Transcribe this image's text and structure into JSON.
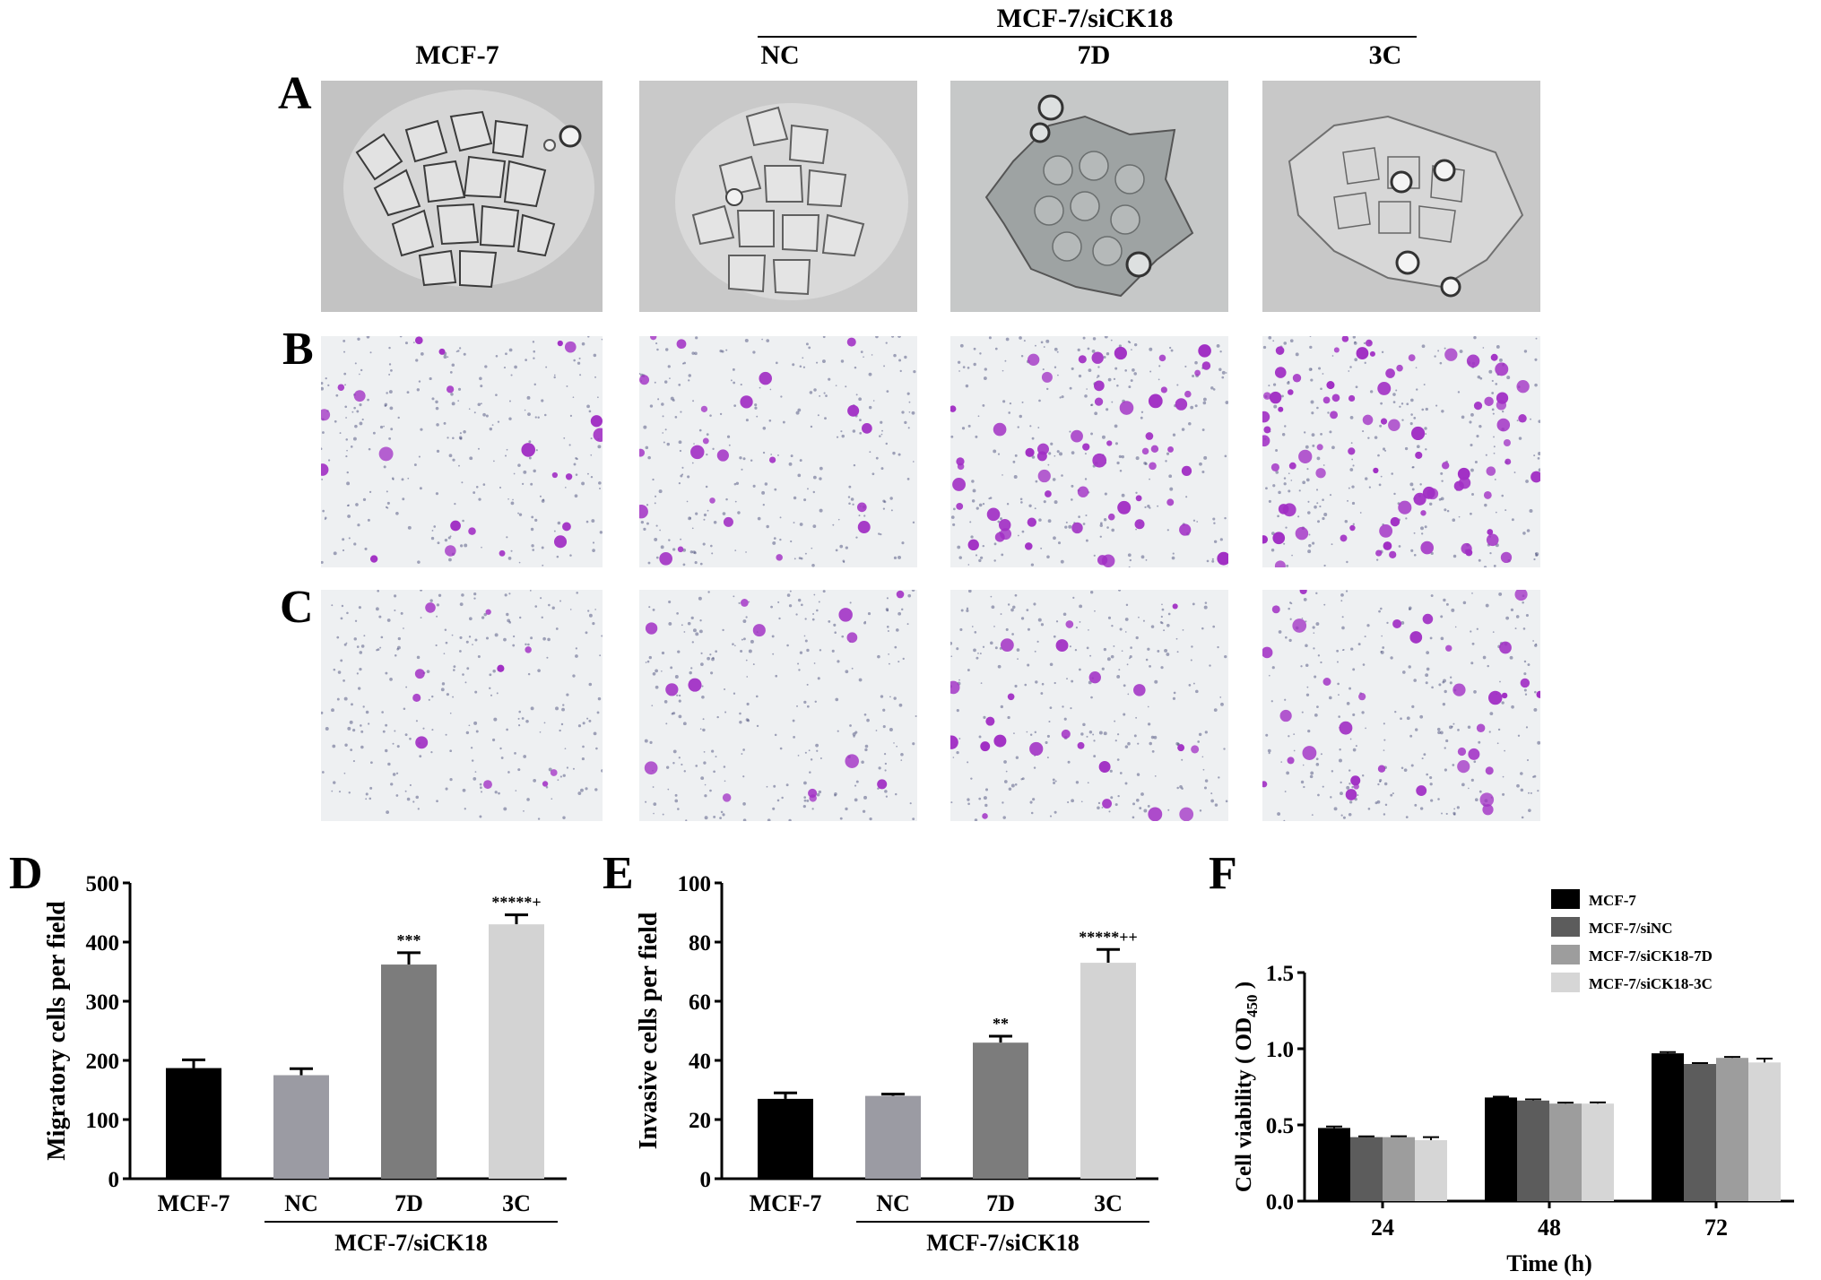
{
  "figure": {
    "group_header": "MCF-7/siCK18",
    "columns": [
      "MCF-7",
      "NC",
      "7D",
      "3C"
    ],
    "rows": [
      "A",
      "B",
      "C"
    ],
    "colors": {
      "phase_bg": "#b9bcbd",
      "stain_bg": "#eef0f2",
      "stain_cell": "#a12fc4",
      "stain_dot": "#3a3f6e"
    }
  },
  "panels": {
    "D": {
      "letter": "D",
      "group_label": "MCF-7/siCK18"
    },
    "E": {
      "letter": "E",
      "group_label": "MCF-7/siCK18"
    },
    "F": {
      "letter": "F"
    }
  },
  "chart_data": [
    {
      "type": "bar",
      "panel": "D",
      "categories": [
        "MCF-7",
        "NC",
        "7D",
        "3C"
      ],
      "values": [
        187,
        175,
        362,
        430
      ],
      "errors": [
        14,
        11,
        20,
        16
      ],
      "annotations": [
        "",
        "",
        "***",
        "*****+"
      ],
      "colors": [
        "#000000",
        "#9b9ba3",
        "#7c7c7c",
        "#d3d3d3"
      ],
      "ylabel": "Migratory cells per field",
      "ylim": [
        0,
        500
      ],
      "yticks": [
        0,
        100,
        200,
        300,
        400,
        500
      ]
    },
    {
      "type": "bar",
      "panel": "E",
      "categories": [
        "MCF-7",
        "NC",
        "7D",
        "3C"
      ],
      "values": [
        27,
        28,
        46,
        73
      ],
      "errors": [
        2,
        0.6,
        2.2,
        4.5
      ],
      "annotations": [
        "",
        "",
        "**",
        "*****++"
      ],
      "colors": [
        "#000000",
        "#9b9ba3",
        "#7c7c7c",
        "#d3d3d3"
      ],
      "ylabel": "Invasive cells per field",
      "ylim": [
        0,
        100
      ],
      "yticks": [
        0,
        20,
        40,
        60,
        80,
        100
      ]
    },
    {
      "type": "bar",
      "panel": "F",
      "categories": [
        "24",
        "48",
        "72"
      ],
      "series": [
        {
          "name": "MCF-7",
          "color": "#000000",
          "values": [
            0.48,
            0.68,
            0.97
          ],
          "errors": [
            0.01,
            0.005,
            0.008
          ]
        },
        {
          "name": "MCF-7/siNC",
          "color": "#5c5c5c",
          "values": [
            0.42,
            0.66,
            0.9
          ],
          "errors": [
            0.005,
            0.008,
            0.006
          ]
        },
        {
          "name": "MCF-7/siCK18-7D",
          "color": "#9d9d9d",
          "values": [
            0.42,
            0.64,
            0.94
          ],
          "errors": [
            0.006,
            0.006,
            0.006
          ]
        },
        {
          "name": "MCF-7/siCK18-3C",
          "color": "#d6d6d6",
          "values": [
            0.4,
            0.64,
            0.91
          ],
          "errors": [
            0.02,
            0.008,
            0.025
          ]
        }
      ],
      "ylabel": "Cell viability ( OD450 )",
      "ylabel_main": "Cell viability ( OD",
      "ylabel_sub": "450",
      "ylabel_end": " )",
      "xlabel": "Time (h)",
      "ylim": [
        0,
        1.5
      ],
      "yticks": [
        "0.0",
        "0.5",
        "1.0",
        "1.5"
      ],
      "legend_position": "top-right"
    }
  ]
}
